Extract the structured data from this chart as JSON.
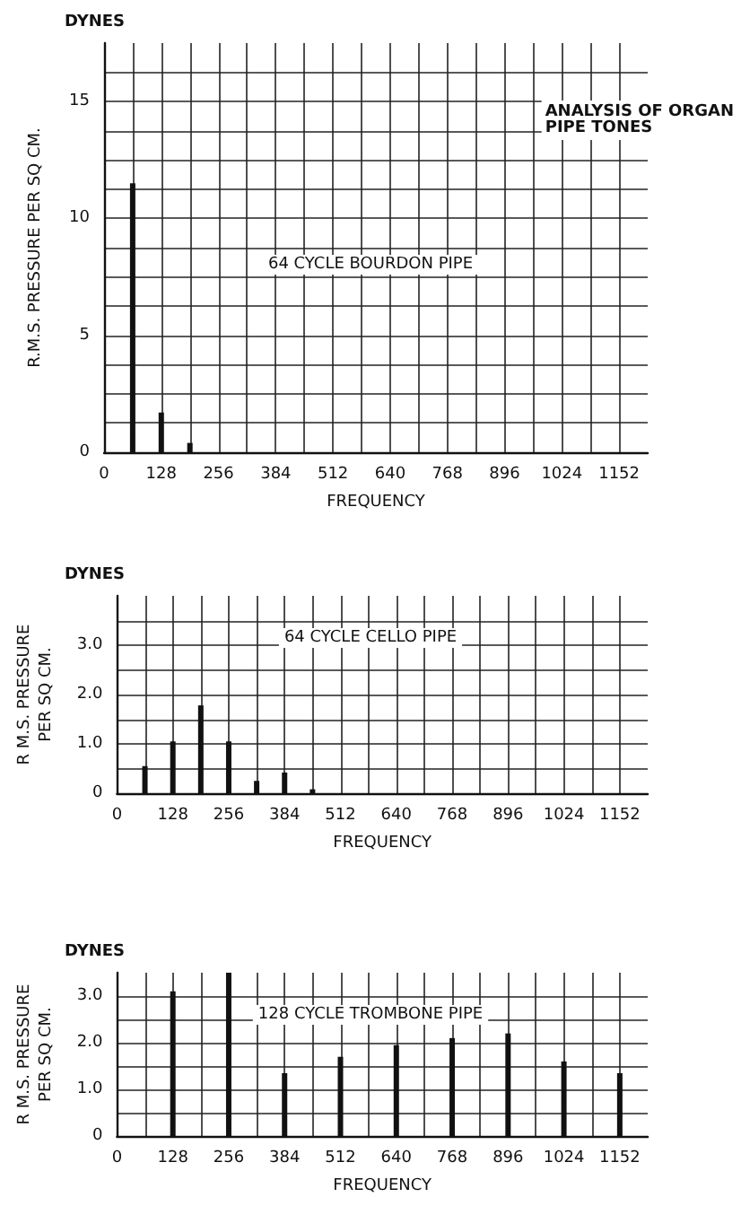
{
  "chart_data": [
    {
      "type": "bar",
      "title": "64 CYCLE BOURDON PIPE",
      "xlabel": "FREQUENCY",
      "ylabel": "R.M.S. PRESSURE PER SQ CM.",
      "annotations": [
        "DYNES",
        "ANALYSIS OF ORGAN PIPE TONES"
      ],
      "x": [
        64,
        128,
        192
      ],
      "values": [
        11.5,
        1.7,
        0.4
      ],
      "color": "#111111",
      "xlim": [
        0,
        1216
      ],
      "xticks": [
        0,
        {
          "value": 64,
          "label": null
        },
        128,
        {
          "value": 192,
          "label": null
        },
        256,
        {
          "value": 320,
          "label": null
        },
        384,
        {
          "value": 448,
          "label": null
        },
        512,
        {
          "value": 576,
          "label": null
        },
        640,
        {
          "value": 704,
          "label": null
        },
        768,
        {
          "value": 832,
          "label": null
        },
        896,
        {
          "value": 960,
          "label": null
        },
        1024,
        {
          "value": 1088,
          "label": null
        },
        1152
      ],
      "ylim": [
        0,
        17.5
      ],
      "yticks": [
        0,
        {
          "value": 1.25,
          "label": null
        },
        {
          "value": 2.5,
          "label": null
        },
        {
          "value": 3.75,
          "label": null
        },
        5,
        {
          "value": 6.25,
          "label": null
        },
        {
          "value": 7.5,
          "label": null
        },
        {
          "value": 8.75,
          "label": null
        },
        10,
        {
          "value": 11.25,
          "label": null
        },
        {
          "value": 12.5,
          "label": null
        },
        {
          "value": 13.75,
          "label": null
        },
        15,
        {
          "value": 16.25,
          "label": null
        }
      ],
      "grid": true
    },
    {
      "type": "bar",
      "title": "64 CYCLE CELLO PIPE",
      "xlabel": "FREQUENCY",
      "ylabel": "R M.S. PRESSURE\nPER SQ CM.",
      "annotations": [
        "DYNES"
      ],
      "x": [
        64,
        128,
        192,
        256,
        320,
        384,
        448
      ],
      "values": [
        0.55,
        1.05,
        1.78,
        1.05,
        0.25,
        0.42,
        0.08
      ],
      "color": "#111111",
      "xlim": [
        0,
        1216
      ],
      "xticks": [
        0,
        {
          "value": 64,
          "label": null
        },
        128,
        {
          "value": 192,
          "label": null
        },
        256,
        {
          "value": 320,
          "label": null
        },
        384,
        {
          "value": 448,
          "label": null
        },
        512,
        {
          "value": 576,
          "label": null
        },
        640,
        {
          "value": 704,
          "label": null
        },
        768,
        {
          "value": 832,
          "label": null
        },
        896,
        {
          "value": 960,
          "label": null
        },
        1024,
        {
          "value": 1088,
          "label": null
        },
        1152
      ],
      "ylim": [
        0,
        4
      ],
      "yticks": [
        0,
        {
          "value": 0.5,
          "label": null
        },
        {
          "value": 1,
          "label": "1.0"
        },
        {
          "value": 1.5,
          "label": null
        },
        {
          "value": 2,
          "label": "2.0"
        },
        {
          "value": 2.5,
          "label": null
        },
        {
          "value": 3,
          "label": "3.0"
        },
        {
          "value": 3.5,
          "label": null
        }
      ],
      "grid": true
    },
    {
      "type": "bar",
      "title": "128 CYCLE TROMBONE PIPE",
      "xlabel": "FREQUENCY",
      "ylabel": "R M.S. PRESSURE\nPER SQ CM.",
      "annotations": [
        "DYNES"
      ],
      "x": [
        128,
        256,
        384,
        512,
        640,
        768,
        896,
        1024,
        1152
      ],
      "values": [
        3.1,
        3.5,
        1.35,
        1.7,
        1.95,
        2.1,
        2.2,
        1.6,
        1.35
      ],
      "color": "#111111",
      "xlim": [
        0,
        1216
      ],
      "xticks": [
        0,
        {
          "value": 64,
          "label": null
        },
        128,
        {
          "value": 192,
          "label": null
        },
        256,
        {
          "value": 320,
          "label": null
        },
        384,
        {
          "value": 448,
          "label": null
        },
        512,
        {
          "value": 576,
          "label": null
        },
        640,
        {
          "value": 704,
          "label": null
        },
        768,
        {
          "value": 832,
          "label": null
        },
        896,
        {
          "value": 960,
          "label": null
        },
        1024,
        {
          "value": 1088,
          "label": null
        },
        1152
      ],
      "ylim": [
        0,
        3.5
      ],
      "yticks": [
        0,
        {
          "value": 0.5,
          "label": null
        },
        {
          "value": 1,
          "label": "1.0"
        },
        {
          "value": 1.5,
          "label": null
        },
        {
          "value": 2,
          "label": "2.0"
        },
        {
          "value": 2.5,
          "label": null
        },
        {
          "value": 3,
          "label": "3.0"
        }
      ],
      "grid": true
    }
  ]
}
